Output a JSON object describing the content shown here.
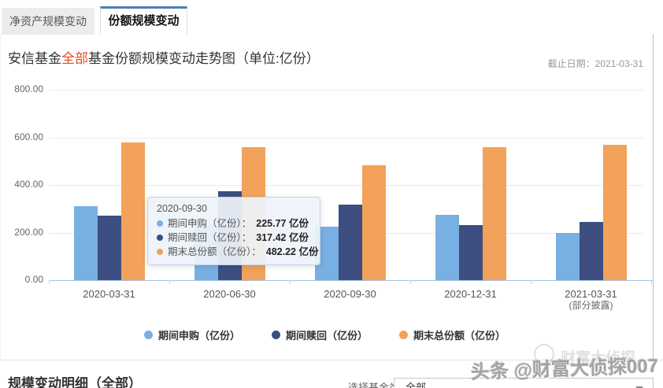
{
  "tabs": [
    {
      "label": "净资产规模变动",
      "active": false
    },
    {
      "label": "份额规模变动",
      "active": true
    }
  ],
  "header": {
    "title_prefix": "安信基金",
    "title_highlight": "全部",
    "title_suffix": "基金份额规模变动走势图（单位:亿份）",
    "as_of": "截止日期：2021-03-31"
  },
  "chart_data": {
    "type": "bar",
    "title": "安信基金全部基金份额规模变动走势图（单位:亿份）",
    "unit": "亿份",
    "categories": [
      "2020-03-31",
      "2020-06-30",
      "2020-09-30",
      "2020-12-31",
      "2021-03-31"
    ],
    "category_sublabels": [
      "",
      "",
      "",
      "",
      "(部分披露)"
    ],
    "series": [
      {
        "name": "期间申购（亿份）",
        "color": "#79B0E3",
        "values": [
          310,
          230,
          225.77,
          275,
          198
        ]
      },
      {
        "name": "期间赎回（亿份）",
        "color": "#3C4F80",
        "values": [
          272,
          373,
          317.42,
          232,
          244
        ]
      },
      {
        "name": "期末总份额（亿份）",
        "color": "#F2A25A",
        "values": [
          580,
          558,
          482.22,
          560,
          570
        ]
      }
    ],
    "ylim": [
      0,
      800
    ],
    "ytick_labels": [
      "0.00",
      "200.00",
      "400.00",
      "600.00",
      "800.00"
    ],
    "grid": true,
    "legend_position": "bottom",
    "note": "2020-06-30 期间申购 bar top is hidden behind the tooltip; its value is estimated"
  },
  "tooltip": {
    "date": "2020-09-30",
    "rows": [
      {
        "label": "期间申购（亿份）",
        "value": "225.77 亿份",
        "color": "#79B0E3"
      },
      {
        "label": "期间赎回（亿份）",
        "value": "317.42 亿份",
        "color": "#3C4F80"
      },
      {
        "label": "期末总份额（亿份）",
        "value": "482.22 亿份",
        "color": "#F2A25A"
      }
    ]
  },
  "footer": {
    "detail_title": "规模变动明细（全部）",
    "select_label": "选择基金类型：",
    "select_value": "全部"
  },
  "watermark": {
    "main": "头条 @财富大侦探007",
    "secondary": "财富大侦探"
  },
  "colors": {
    "tab_accent": "#4E80B4",
    "title_highlight": "#E2491F",
    "axis_line": "#AAC4E2",
    "gridline": "#EBEBEB",
    "series_buy": "#79B0E3",
    "series_redeem": "#3C4F80",
    "series_total": "#F2A25A"
  }
}
